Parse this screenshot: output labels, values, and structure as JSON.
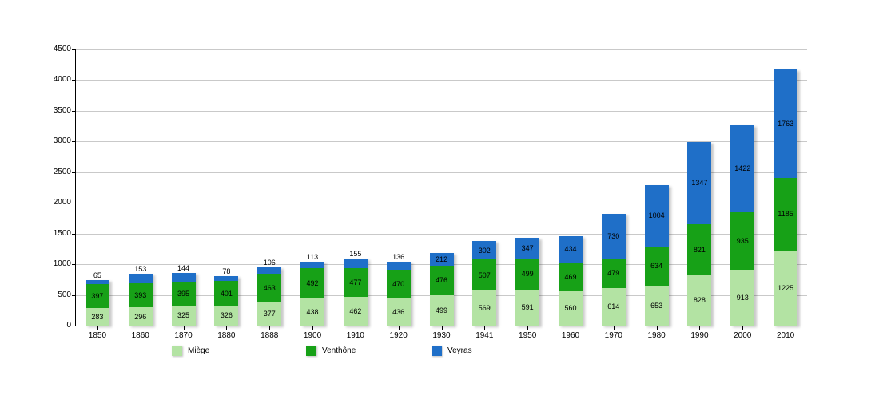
{
  "chart_data": {
    "type": "bar",
    "stacked": true,
    "title": "",
    "categories": [
      "1850",
      "1860",
      "1870",
      "1880",
      "1888",
      "1900",
      "1910",
      "1920",
      "1930",
      "1941",
      "1950",
      "1960",
      "1970",
      "1980",
      "1990",
      "2000",
      "2010"
    ],
    "series": [
      {
        "name": "Miège",
        "color": "#b3e3a3",
        "values": [
          283,
          296,
          325,
          326,
          377,
          438,
          462,
          436,
          499,
          569,
          591,
          560,
          614,
          653,
          828,
          913,
          1225
        ]
      },
      {
        "name": "Venthône",
        "color": "#17a117",
        "values": [
          397,
          393,
          395,
          401,
          463,
          492,
          477,
          470,
          476,
          507,
          499,
          469,
          479,
          634,
          821,
          935,
          1185
        ]
      },
      {
        "name": "Veyras",
        "color": "#1f6fc8",
        "values": [
          65,
          153,
          144,
          78,
          106,
          113,
          155,
          136,
          212,
          302,
          347,
          434,
          730,
          1004,
          1347,
          1422,
          1763
        ]
      }
    ],
    "ylim": [
      0,
      4500
    ],
    "ytick_step": 500,
    "yticks": [
      "0",
      "500",
      "1000",
      "1500",
      "2000",
      "2500",
      "3000",
      "3500",
      "4000",
      "4500"
    ],
    "grid": true,
    "legend_position": "bottom",
    "grid_color": "#c9c9c9",
    "axis_color": "#000000",
    "label_color": "#000000"
  }
}
